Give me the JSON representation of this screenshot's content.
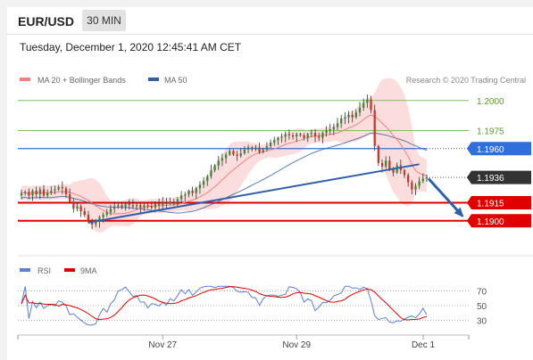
{
  "header": {
    "pair": "EUR/USD",
    "timeframe": "30 MIN"
  },
  "datetime": "Tuesday, December 1, 2020 12:45:41 AM CET",
  "legend": {
    "ma20_bb": "MA 20 + Bollinger Bands",
    "ma50": "MA 50",
    "credit": "Research © 2020 Trading Central",
    "rsi": "RSI",
    "rsi_ma": "9MA"
  },
  "colors": {
    "bollinger": "#f7b3b3",
    "ma20": "#f08080",
    "ma50": "#2f5fa8",
    "bull": "#3a8a3a",
    "bear": "#c0392b",
    "support": "#e00000",
    "resistance": "#7cc05a",
    "pivot": "#2e6fdb",
    "current": "#333333",
    "rsi": "#5b7fd6",
    "rsi_ma": "#e00000"
  },
  "chart_data": [
    {
      "type": "candlestick",
      "title": "EUR/USD",
      "x_tick_labels": [
        "Nov 27",
        "Nov 29",
        "Dec 1"
      ],
      "levels": [
        {
          "value": 1.2,
          "label": "1.2000",
          "kind": "resistance"
        },
        {
          "value": 1.1975,
          "label": "1.1975",
          "kind": "resistance"
        },
        {
          "value": 1.196,
          "label": "1.1960",
          "kind": "pivot"
        },
        {
          "value": 1.1936,
          "label": "1.1936",
          "kind": "last"
        },
        {
          "value": 1.1915,
          "label": "1.1915",
          "kind": "support"
        },
        {
          "value": 1.19,
          "label": "1.1900",
          "kind": "support"
        }
      ],
      "ylim": [
        1.1885,
        1.2005
      ],
      "closes": [
        1.1923,
        1.1924,
        1.1921,
        1.1925,
        1.1922,
        1.1926,
        1.1921,
        1.1923,
        1.1925,
        1.1926,
        1.1928,
        1.1927,
        1.1922,
        1.1916,
        1.191,
        1.1912,
        1.1908,
        1.1905,
        1.19,
        1.1897,
        1.1899,
        1.1903,
        1.1905,
        1.1907,
        1.191,
        1.1912,
        1.1913,
        1.1911,
        1.1914,
        1.1913,
        1.1912,
        1.1913,
        1.1911,
        1.1913,
        1.1912,
        1.1911,
        1.1914,
        1.1913,
        1.1915,
        1.1914,
        1.1916,
        1.1915,
        1.1918,
        1.1921,
        1.1922,
        1.1925,
        1.1923,
        1.1927,
        1.193,
        1.1933,
        1.1937,
        1.1942,
        1.1946,
        1.195,
        1.1952,
        1.1955,
        1.1958,
        1.1955,
        1.1954,
        1.1956,
        1.1959,
        1.1961,
        1.196,
        1.1961,
        1.1957,
        1.1959,
        1.1962,
        1.1965,
        1.1967,
        1.1969,
        1.197,
        1.1972,
        1.1971,
        1.197,
        1.1972,
        1.1971,
        1.1969,
        1.1972,
        1.1973,
        1.197,
        1.1969,
        1.1973,
        1.1975,
        1.1976,
        1.1978,
        1.1981,
        1.1985,
        1.1986,
        1.1988,
        1.1986,
        1.199,
        1.1994,
        1.1998,
        1.2001,
        1.1992,
        1.1962,
        1.1948,
        1.1945,
        1.195,
        1.1943,
        1.194,
        1.1946,
        1.1942,
        1.1938,
        1.1932,
        1.1926,
        1.1929,
        1.1933,
        1.1935,
        1.1936
      ],
      "ma20_bollinger": "drawn as a smoothed line with an upper/lower band",
      "ma50": "drawn as a smoothed line"
    },
    {
      "type": "line",
      "title": "RSI",
      "series": [
        {
          "name": "RSI"
        },
        {
          "name": "9MA"
        }
      ],
      "levels": [
        70,
        50,
        30
      ],
      "ylim": [
        20,
        80
      ]
    }
  ]
}
